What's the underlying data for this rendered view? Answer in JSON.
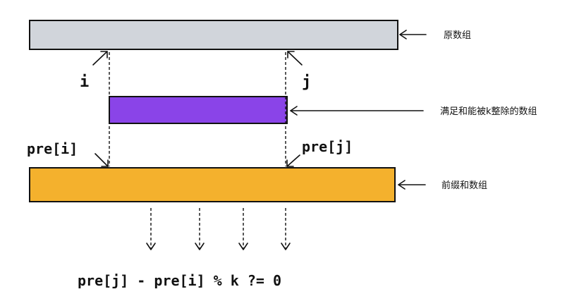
{
  "labels": {
    "original_array": "原数组",
    "divisible_subarray": "满足和能被k整除的数组",
    "prefix_sum_array": "前缀和数组"
  },
  "markers": {
    "i": "i",
    "j": "j",
    "pre_i": "pre[i]",
    "pre_j": "pre[j]"
  },
  "formula": "pre[j] - pre[i] % k ?= 0",
  "colors": {
    "original_array": "#d1d5db",
    "divisible_subarray": "#8a44e8",
    "prefix_sum_array": "#f4b12d"
  }
}
